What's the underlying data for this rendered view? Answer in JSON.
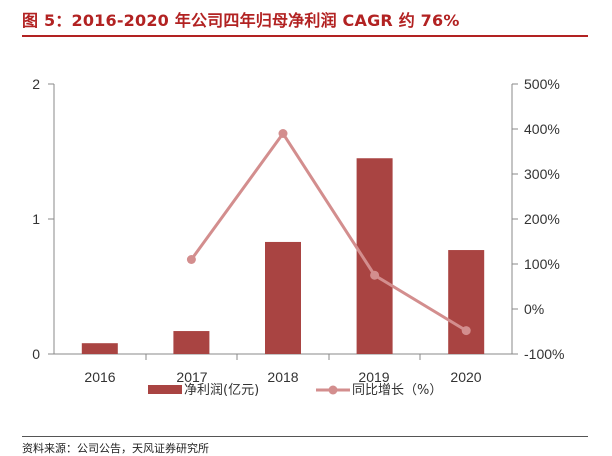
{
  "figure_title": "图 5：2016-2020 年公司四年归母净利润 CAGR 约 76%",
  "source_note": "资料来源：公司公告，天风证券研究所",
  "colors": {
    "bar": "#a94442",
    "line": "#d38e8e",
    "title": "#b22222",
    "axis": "#888888"
  },
  "chart_data": {
    "type": "bar+line",
    "title": "2016-2020 年公司四年归母净利润 CAGR 约 76%",
    "categories": [
      "2016",
      "2017",
      "2018",
      "2019",
      "2020"
    ],
    "series": [
      {
        "name": "净利润(亿元)",
        "type": "bar",
        "axis": "left",
        "values": [
          0.08,
          0.17,
          0.83,
          1.45,
          0.77
        ]
      },
      {
        "name": "同比增长（%）",
        "type": "line",
        "axis": "right",
        "values": [
          null,
          110,
          390,
          75,
          -48
        ]
      }
    ],
    "left_axis": {
      "ylim": [
        0,
        2
      ],
      "ticks": [
        "0",
        "1",
        "2"
      ],
      "tick_values": [
        0,
        1,
        2
      ]
    },
    "right_axis": {
      "ylim": [
        -100,
        500
      ],
      "ticks": [
        "-100%",
        "0%",
        "100%",
        "200%",
        "300%",
        "400%",
        "500%"
      ],
      "tick_values": [
        -100,
        0,
        100,
        200,
        300,
        400,
        500
      ]
    },
    "legend": {
      "placement": "bottom",
      "labels": [
        "净利润(亿元)",
        "同比增长（%）"
      ]
    }
  }
}
